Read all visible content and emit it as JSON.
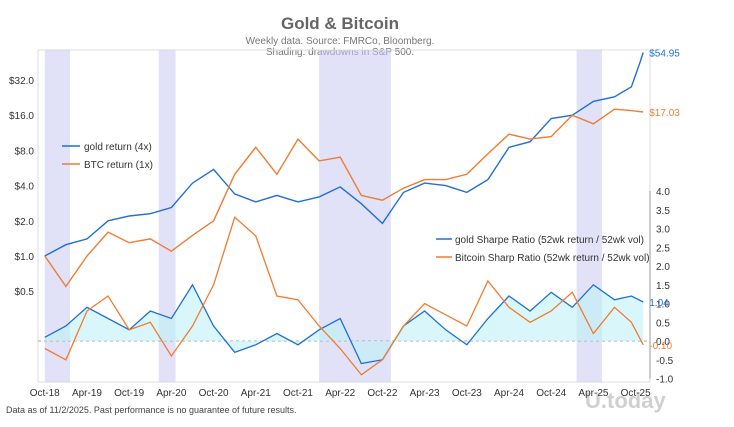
{
  "chart_data": {
    "type": "line",
    "title": "Gold & Bitcoin",
    "subtitle_lines": [
      "Weekly data.  Source: FMRCo, Bloomberg.",
      "Shading: drawdowns in S&P 500."
    ],
    "footnote": "Data as of 11/2/2025. Past performance is no guarantee of future results.",
    "watermark": "U.today",
    "x_tick_labels": [
      "Oct-18",
      "Apr-19",
      "Oct-19",
      "Apr-20",
      "Oct-20",
      "Apr-21",
      "Oct-21",
      "Apr-22",
      "Oct-22",
      "Apr-23",
      "Oct-23",
      "Apr-24",
      "Oct-24",
      "Apr-25",
      "Oct-25"
    ],
    "top_panel": {
      "scale": "log",
      "y_ticks": [
        "$0.5",
        "$1.0",
        "$2.0",
        "$4.0",
        "$8.0",
        "$16.0",
        "$32.0"
      ],
      "y_tick_values": [
        0.5,
        1,
        2,
        4,
        8,
        16,
        32
      ],
      "legend": [
        "gold return (4x)",
        "BTC return (1x)"
      ],
      "series": [
        {
          "name": "gold return (4x)",
          "color": "#1f6fd6",
          "x": [
            2018.75,
            2019.0,
            2019.25,
            2019.5,
            2019.75,
            2020.0,
            2020.25,
            2020.5,
            2020.75,
            2021.0,
            2021.25,
            2021.5,
            2021.75,
            2022.0,
            2022.25,
            2022.5,
            2022.75,
            2023.0,
            2023.25,
            2023.5,
            2023.75,
            2024.0,
            2024.25,
            2024.5,
            2024.75,
            2025.0,
            2025.25,
            2025.5,
            2025.7,
            2025.8,
            2025.84
          ],
          "y": [
            1.0,
            1.25,
            1.4,
            2.0,
            2.2,
            2.3,
            2.6,
            4.2,
            5.5,
            3.4,
            2.9,
            3.3,
            2.9,
            3.2,
            3.9,
            2.8,
            1.9,
            3.5,
            4.2,
            4.0,
            3.5,
            4.5,
            8.5,
            9.5,
            15.0,
            16.0,
            21.0,
            23.0,
            28.0,
            45.0,
            54.95
          ],
          "end_label": "$54.95"
        },
        {
          "name": "BTC return (1x)",
          "color": "#ee7d31",
          "x": [
            2018.75,
            2019.0,
            2019.25,
            2019.5,
            2019.75,
            2020.0,
            2020.25,
            2020.5,
            2020.75,
            2021.0,
            2021.25,
            2021.5,
            2021.75,
            2022.0,
            2022.25,
            2022.5,
            2022.75,
            2023.0,
            2023.25,
            2023.5,
            2023.75,
            2024.0,
            2024.25,
            2024.5,
            2024.75,
            2025.0,
            2025.25,
            2025.5,
            2025.7,
            2025.84
          ],
          "y": [
            1.0,
            0.55,
            1.0,
            1.6,
            1.3,
            1.4,
            1.1,
            1.5,
            2.0,
            5.0,
            8.5,
            5.0,
            10.0,
            6.5,
            7.0,
            3.3,
            3.0,
            3.8,
            4.5,
            4.5,
            5.0,
            7.5,
            11.0,
            10.0,
            10.5,
            16.0,
            13.5,
            18.0,
            17.5,
            17.03
          ],
          "end_label": "$17.03"
        }
      ]
    },
    "bottom_panel": {
      "y_ticks": [
        "-1.0",
        "-0.5",
        "0.0",
        "0.5",
        "1.0",
        "1.5",
        "2.0",
        "2.5",
        "3.0",
        "3.5",
        "4.0"
      ],
      "y_tick_values": [
        -1.0,
        -0.5,
        0,
        0.5,
        1.0,
        1.5,
        2.0,
        2.5,
        3.0,
        3.5,
        4.0
      ],
      "ylim": [
        -1.0,
        4.0
      ],
      "legend": [
        "gold Sharpe Ratio (52wk return / 52wk vol)",
        "Bitcoin Sharp Ratio (52wk return / 52wk vol)"
      ],
      "series": [
        {
          "name": "gold Sharpe Ratio (52wk return / 52wk vol)",
          "color": "#1f6fd6",
          "x": [
            2018.75,
            2019.0,
            2019.25,
            2019.5,
            2019.75,
            2020.0,
            2020.25,
            2020.5,
            2020.75,
            2021.0,
            2021.25,
            2021.5,
            2021.75,
            2022.0,
            2022.25,
            2022.5,
            2022.75,
            2023.0,
            2023.25,
            2023.5,
            2023.75,
            2024.0,
            2024.25,
            2024.5,
            2024.75,
            2025.0,
            2025.25,
            2025.5,
            2025.7,
            2025.84
          ],
          "y": [
            0.1,
            0.4,
            0.9,
            0.6,
            0.3,
            0.8,
            0.6,
            1.5,
            0.4,
            -0.3,
            -0.1,
            0.2,
            -0.1,
            0.3,
            0.6,
            -0.6,
            -0.5,
            0.4,
            0.8,
            0.3,
            -0.1,
            0.6,
            1.2,
            0.8,
            1.3,
            0.9,
            1.5,
            1.1,
            1.2,
            1.04
          ],
          "end_label": "1.04"
        },
        {
          "name": "Bitcoin Sharp Ratio (52wk return / 52wk vol)",
          "color": "#ee7d31",
          "x": [
            2018.75,
            2019.0,
            2019.25,
            2019.5,
            2019.75,
            2020.0,
            2020.25,
            2020.5,
            2020.75,
            2021.0,
            2021.25,
            2021.5,
            2021.75,
            2022.0,
            2022.25,
            2022.5,
            2022.75,
            2023.0,
            2023.25,
            2023.5,
            2023.75,
            2024.0,
            2024.25,
            2024.5,
            2024.75,
            2025.0,
            2025.25,
            2025.5,
            2025.7,
            2025.84
          ],
          "y": [
            -0.2,
            -0.5,
            0.8,
            1.2,
            0.3,
            0.5,
            -0.4,
            0.4,
            1.5,
            3.3,
            2.8,
            1.2,
            1.1,
            0.4,
            -0.2,
            -0.9,
            -0.5,
            0.4,
            1.0,
            0.7,
            0.4,
            1.6,
            0.9,
            0.5,
            0.8,
            1.3,
            0.2,
            0.9,
            0.5,
            -0.1
          ],
          "end_label": "-0.10"
        }
      ]
    },
    "drawdown_shading": [
      [
        2018.75,
        2019.05
      ],
      [
        2020.1,
        2020.3
      ],
      [
        2022.0,
        2022.85
      ],
      [
        2025.05,
        2025.35
      ]
    ],
    "x_range": [
      2018.67,
      2025.92
    ]
  }
}
